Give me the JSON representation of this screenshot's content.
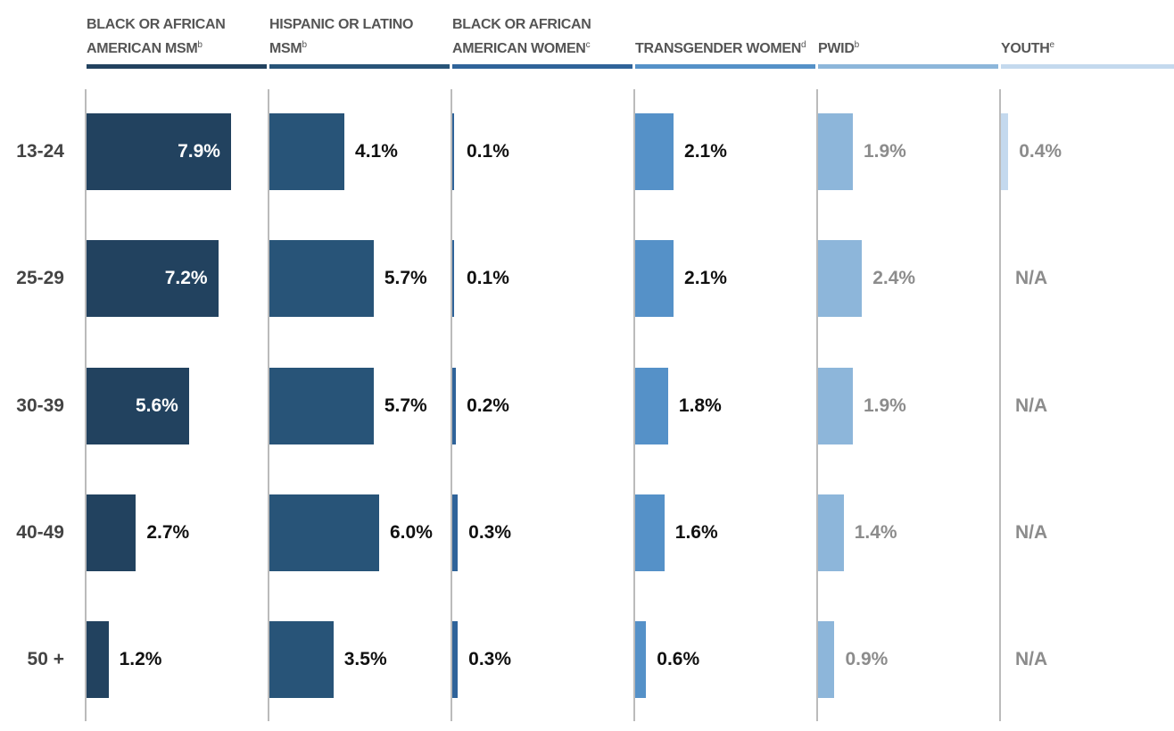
{
  "chart_data": {
    "type": "bar",
    "categories": [
      "13-24",
      "25-29",
      "30-39",
      "40-49",
      "50 +"
    ],
    "xlim": [
      0,
      10
    ],
    "series": [
      {
        "name": "BLACK OR AFRICAN AMERICAN MSM",
        "note": "b",
        "color": "#22425f",
        "label_color": "#111111",
        "values": [
          7.9,
          7.2,
          5.6,
          2.7,
          1.2
        ],
        "value_labels": [
          "7.9%",
          "7.2%",
          "5.6%",
          "2.7%",
          "1.2%"
        ]
      },
      {
        "name": "HISPANIC OR LATINO MSM",
        "note": "b",
        "color": "#285478",
        "label_color": "#111111",
        "values": [
          4.1,
          5.7,
          5.7,
          6.0,
          3.5
        ],
        "value_labels": [
          "4.1%",
          "5.7%",
          "5.7%",
          "6.0%",
          "3.5%"
        ]
      },
      {
        "name": "BLACK OR AFRICAN AMERICAN WOMEN",
        "note": "c",
        "color": "#2f6399",
        "label_color": "#111111",
        "values": [
          0.1,
          0.1,
          0.2,
          0.3,
          0.3
        ],
        "value_labels": [
          "0.1%",
          "0.1%",
          "0.2%",
          "0.3%",
          "0.3%"
        ]
      },
      {
        "name": "TRANSGENDER WOMEN",
        "note": "d",
        "color": "#5591c8",
        "label_color": "#111111",
        "values": [
          2.1,
          2.1,
          1.8,
          1.6,
          0.6
        ],
        "value_labels": [
          "2.1%",
          "2.1%",
          "1.8%",
          "1.6%",
          "0.6%"
        ]
      },
      {
        "name": "PWID",
        "note": "b",
        "color": "#8db6da",
        "label_color": "#8c8c8c",
        "values": [
          1.9,
          2.4,
          1.9,
          1.4,
          0.9
        ],
        "value_labels": [
          "1.9%",
          "2.4%",
          "1.9%",
          "1.4%",
          "0.9%"
        ]
      },
      {
        "name": "YOUTH",
        "note": "e",
        "color": "#c4d9ee",
        "label_color": "#8c8c8c",
        "values": [
          0.4,
          null,
          null,
          null,
          null
        ],
        "value_labels": [
          "0.4%",
          "N/A",
          "N/A",
          "N/A",
          "N/A"
        ]
      }
    ]
  }
}
